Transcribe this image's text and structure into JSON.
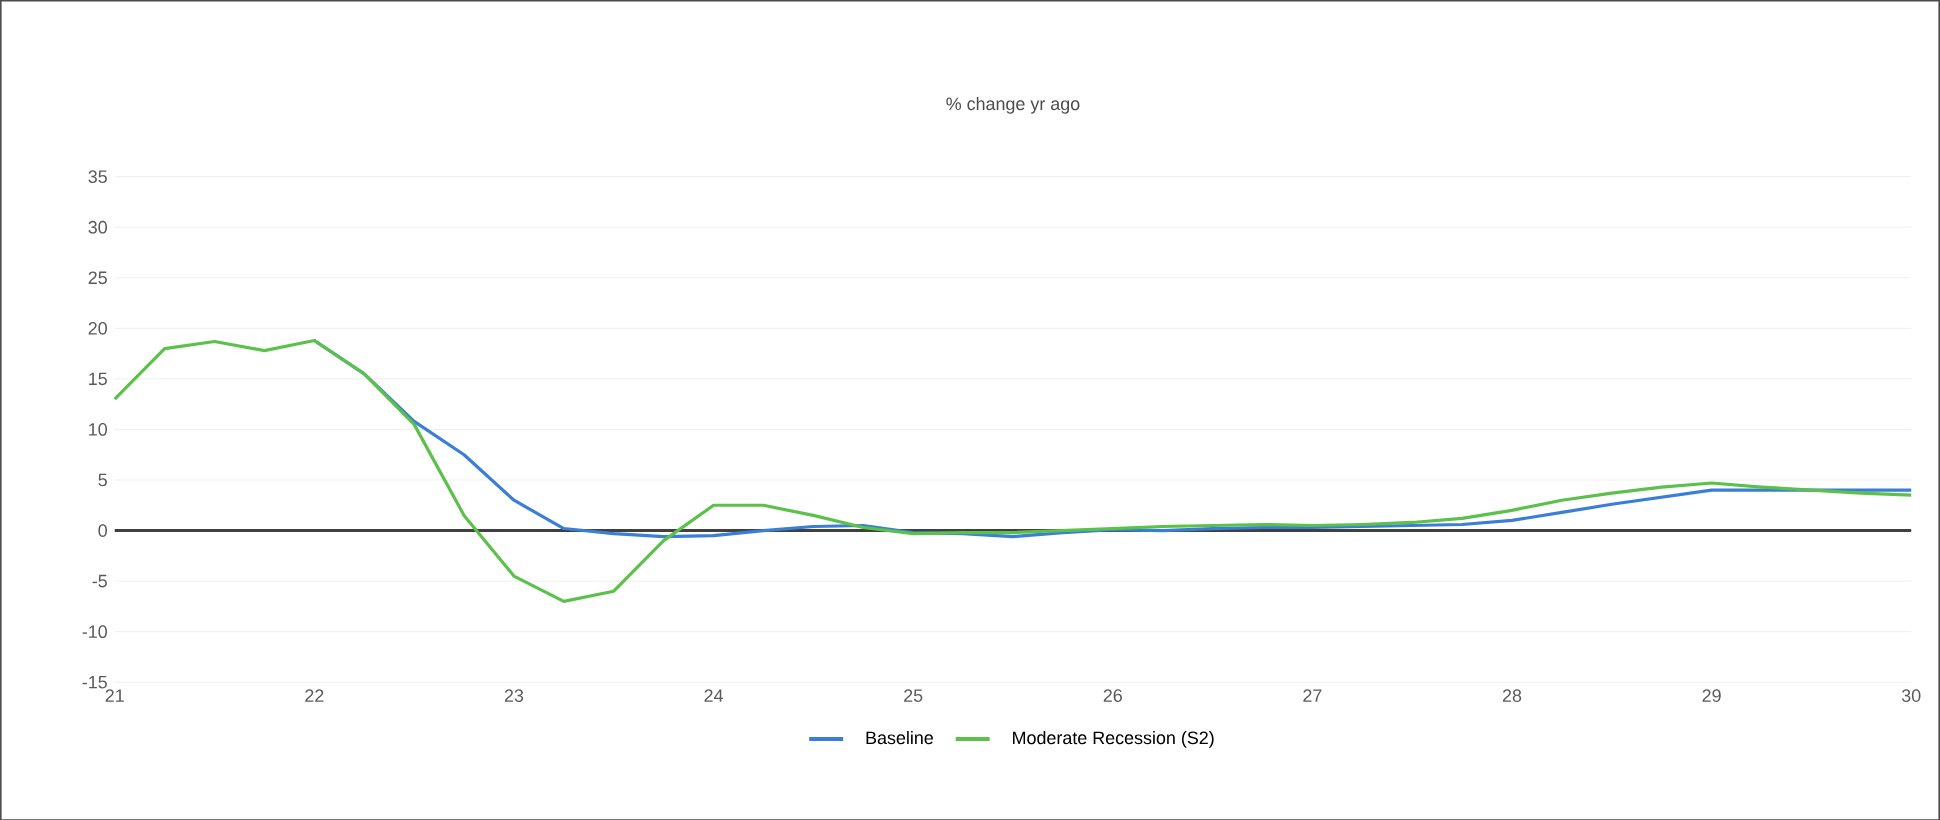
{
  "chart_data": {
    "type": "line",
    "title": "% change yr ago",
    "x": [
      21,
      21.25,
      21.5,
      21.75,
      22,
      22.25,
      22.5,
      22.75,
      23,
      23.25,
      23.5,
      23.75,
      24,
      24.25,
      24.5,
      24.75,
      25,
      25.25,
      25.5,
      25.75,
      26,
      26.25,
      26.5,
      26.75,
      27,
      27.25,
      27.5,
      27.75,
      28,
      28.25,
      28.5,
      28.75,
      29,
      29.25,
      29.5,
      29.75,
      30
    ],
    "series": [
      {
        "name": "Baseline",
        "color": "#3a7fd5",
        "values": [
          null,
          null,
          null,
          null,
          18.8,
          15.5,
          10.8,
          7.5,
          3,
          0.2,
          -0.3,
          -0.6,
          -0.5,
          0,
          0.4,
          0.5,
          -0.2,
          -0.3,
          -0.6,
          -0.2,
          0.1,
          0,
          0.2,
          0.3,
          0.3,
          0.4,
          0.5,
          0.6,
          1,
          1.8,
          2.6,
          3.3,
          4,
          4,
          4,
          4,
          4
        ]
      },
      {
        "name": "Moderate Recession  (S2)",
        "color": "#5cc14a",
        "values": [
          13,
          18,
          18.7,
          17.8,
          18.8,
          15.5,
          10.5,
          1.5,
          -4.5,
          -7,
          -6,
          -1,
          2.5,
          2.5,
          1.5,
          0.3,
          -0.3,
          -0.2,
          -0.2,
          0,
          0.2,
          0.4,
          0.5,
          0.6,
          0.5,
          0.6,
          0.8,
          1.2,
          2,
          3,
          3.7,
          4.3,
          4.7,
          4.3,
          4,
          3.7,
          3.5
        ]
      }
    ],
    "xlim": [
      21,
      30
    ],
    "xticks": [
      21,
      22,
      23,
      24,
      25,
      26,
      27,
      28,
      29,
      30
    ],
    "ylim": [
      -15,
      35
    ],
    "yticks": [
      -15,
      -10,
      -5,
      0,
      5,
      10,
      15,
      20,
      25,
      30,
      35
    ],
    "ref_lines": [
      {
        "axis": "y",
        "value": 0,
        "color": "#404040"
      }
    ],
    "grid": "y",
    "legend": "bottom",
    "marker": "none",
    "line_style": "solid"
  }
}
